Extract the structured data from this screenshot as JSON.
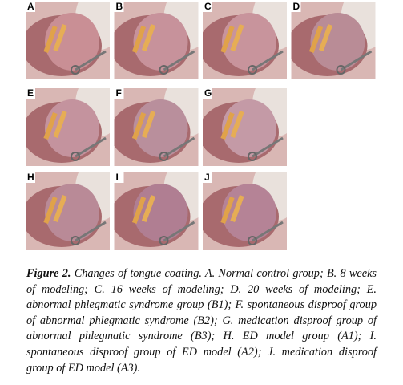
{
  "panels": [
    "A",
    "B",
    "C",
    "D",
    "E",
    "F",
    "G",
    "H",
    "I",
    "J"
  ],
  "caption": {
    "label": "Figure 2.",
    "text": "Changes of tongue coating. A. Normal control group; B. 8 weeks of modeling; C. 16 weeks of modeling; D. 20 weeks of modeling; E. abnormal phlegmatic syndrome group (B1); F. spontaneous disproof group of abnormal phlegmatic syndrome (B2); G. medication disproof group of abnormal phlegmatic syndrome (B3); H. ED model group (A1); I. spontaneous disproof group of ED model (A2); J. medication disproof group of ED model (A3)."
  }
}
